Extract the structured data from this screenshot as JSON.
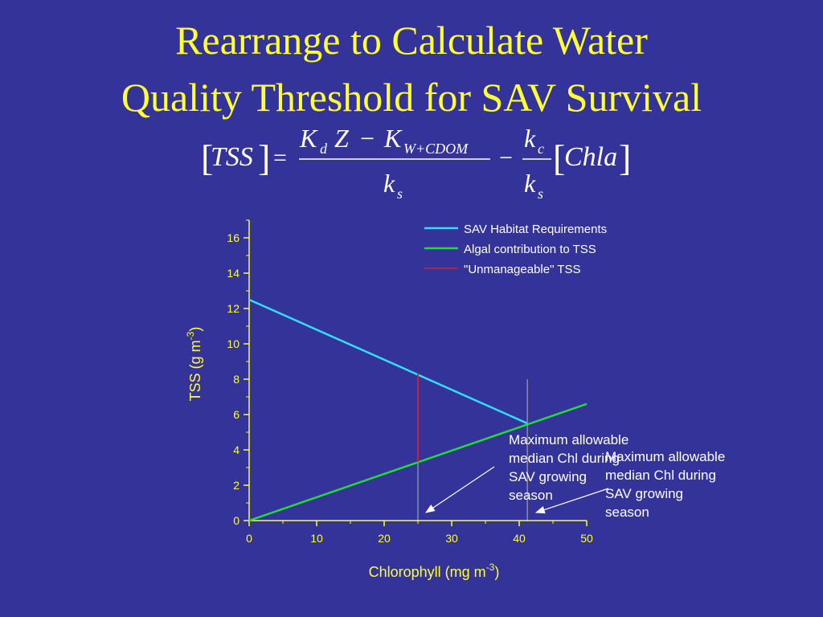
{
  "slide": {
    "title_line1": "Rearrange to Calculate Water",
    "title_line2": "Quality Threshold for SAV Survival"
  },
  "equation": {
    "lhs": "TSS",
    "num_kd": "K",
    "num_kd_sub": "d",
    "num_z": "Z",
    "num_minus": "−",
    "num_kw": "K",
    "num_kw_sub": "W+CDOM",
    "den_k": "k",
    "den_k_sub": "s",
    "minus": "−",
    "equals": "=",
    "kc": "k",
    "kc_sub": "c",
    "ks": "k",
    "ks_sub": "s",
    "rhs": "Chla"
  },
  "annotations": {
    "left": [
      "Maximum allowable",
      "median Chl during",
      "SAV growing",
      "season"
    ],
    "right": [
      "Maximum allowable",
      "median Chl during",
      "SAV growing",
      "season"
    ]
  },
  "chart_data": {
    "type": "line",
    "xlabel": "Chlorophyll (mg m",
    "xlabel_sup": "-3",
    "xlabel_end": ")",
    "ylabel": "TSS (g m",
    "ylabel_sup": "-3",
    "ylabel_end": ")",
    "xlim": [
      0,
      50
    ],
    "ylim": [
      0,
      17
    ],
    "x_ticks": [
      0,
      10,
      20,
      30,
      40,
      50
    ],
    "y_ticks": [
      0,
      2,
      4,
      6,
      8,
      10,
      12,
      14,
      16
    ],
    "legend_position": "top-right",
    "series": [
      {
        "name": "SAV Habitat Requirements",
        "color": "#33ddff",
        "x": [
          0,
          41.2
        ],
        "y": [
          12.5,
          5.5
        ]
      },
      {
        "name": "Algal contribution to TSS",
        "color": "#22dd33",
        "x": [
          0,
          50
        ],
        "y": [
          0,
          6.6
        ]
      },
      {
        "name": "\"Unmanageable\" TSS",
        "color": "#cc2233",
        "x": [
          25,
          25
        ],
        "y": [
          3.3,
          8.3
        ]
      }
    ],
    "markers": [
      {
        "x": 25,
        "color": "#ffffcc"
      },
      {
        "x": 41.2,
        "color": "#ffffcc"
      }
    ]
  }
}
